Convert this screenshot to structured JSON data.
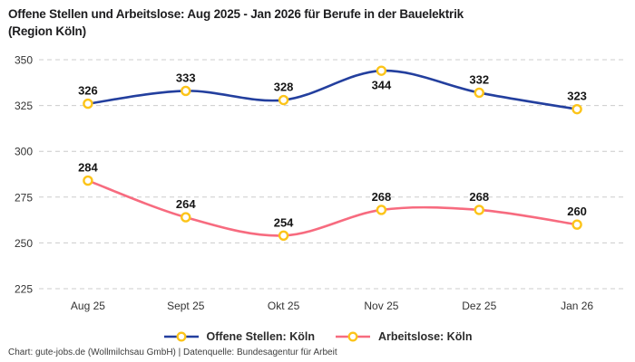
{
  "header": {
    "title": "Offene Stellen und Arbeitslose: Aug 2025 - Jan 2026 für Berufe in der Bauelektrik",
    "title_line2": "(Region Köln)"
  },
  "chart_data": {
    "type": "line",
    "categories": [
      "Aug 25",
      "Sept 25",
      "Okt 25",
      "Nov 25",
      "Dez 25",
      "Jan 26"
    ],
    "series": [
      {
        "name": "Offene Stellen: Köln",
        "values": [
          326,
          333,
          328,
          344,
          332,
          323
        ],
        "color": "#233F9E",
        "label_positions": [
          "above",
          "above",
          "above",
          "below",
          "above",
          "above"
        ]
      },
      {
        "name": "Arbeitslose: Köln",
        "values": [
          284,
          264,
          254,
          268,
          268,
          260
        ],
        "color": "#F76B7F",
        "label_positions": [
          "above",
          "above",
          "above",
          "above",
          "above",
          "above"
        ]
      }
    ],
    "marker_color": "#FCC419",
    "grid_color": "#cccccc",
    "yticks": [
      225,
      250,
      275,
      300,
      325,
      350
    ],
    "ylim": [
      225,
      350
    ],
    "grid": "dashed-horizontal",
    "legend_position": "bottom-center",
    "xlabel": "",
    "ylabel": ""
  },
  "footer": {
    "credit": "Chart: gute-jobs.de (Wollmilchsau GmbH) | Datenquelle: Bundesagentur für Arbeit"
  }
}
